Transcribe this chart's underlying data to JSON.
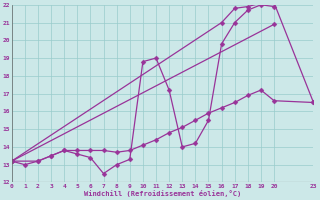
{
  "xlabel": "Windchill (Refroidissement éolien,°C)",
  "bg_color": "#cce8e8",
  "grid_color": "#99cccc",
  "line_color": "#993399",
  "xmin": 0,
  "xmax": 23,
  "ymin": 12,
  "ymax": 22,
  "line1_x": [
    0,
    1,
    2,
    3,
    4,
    5,
    6,
    7,
    8,
    9,
    10,
    11,
    12,
    13,
    14,
    15,
    16,
    17,
    18,
    19,
    20
  ],
  "line1_y": [
    13.2,
    13.0,
    13.2,
    13.5,
    13.8,
    13.6,
    13.4,
    12.5,
    13.0,
    13.3,
    18.8,
    19.0,
    17.2,
    14.0,
    14.2,
    15.5,
    19.8,
    21.0,
    21.7,
    22.0,
    21.9
  ],
  "line2_x": [
    0,
    2,
    3,
    4,
    5,
    6,
    7,
    8,
    9,
    10,
    11,
    12,
    13,
    14,
    15,
    16,
    17,
    18,
    19,
    20,
    23
  ],
  "line2_y": [
    13.2,
    13.2,
    13.5,
    13.8,
    13.8,
    13.8,
    13.8,
    13.7,
    13.8,
    14.1,
    14.4,
    14.8,
    15.1,
    15.5,
    15.9,
    16.2,
    16.5,
    16.9,
    17.2,
    16.6,
    16.5
  ],
  "line3_x": [
    0,
    20
  ],
  "line3_y": [
    13.2,
    20.9
  ],
  "line4_x": [
    0,
    16,
    17,
    18,
    19,
    20,
    23
  ],
  "line4_y": [
    13.2,
    21.0,
    21.8,
    21.9,
    22.1,
    22.1,
    16.5
  ]
}
